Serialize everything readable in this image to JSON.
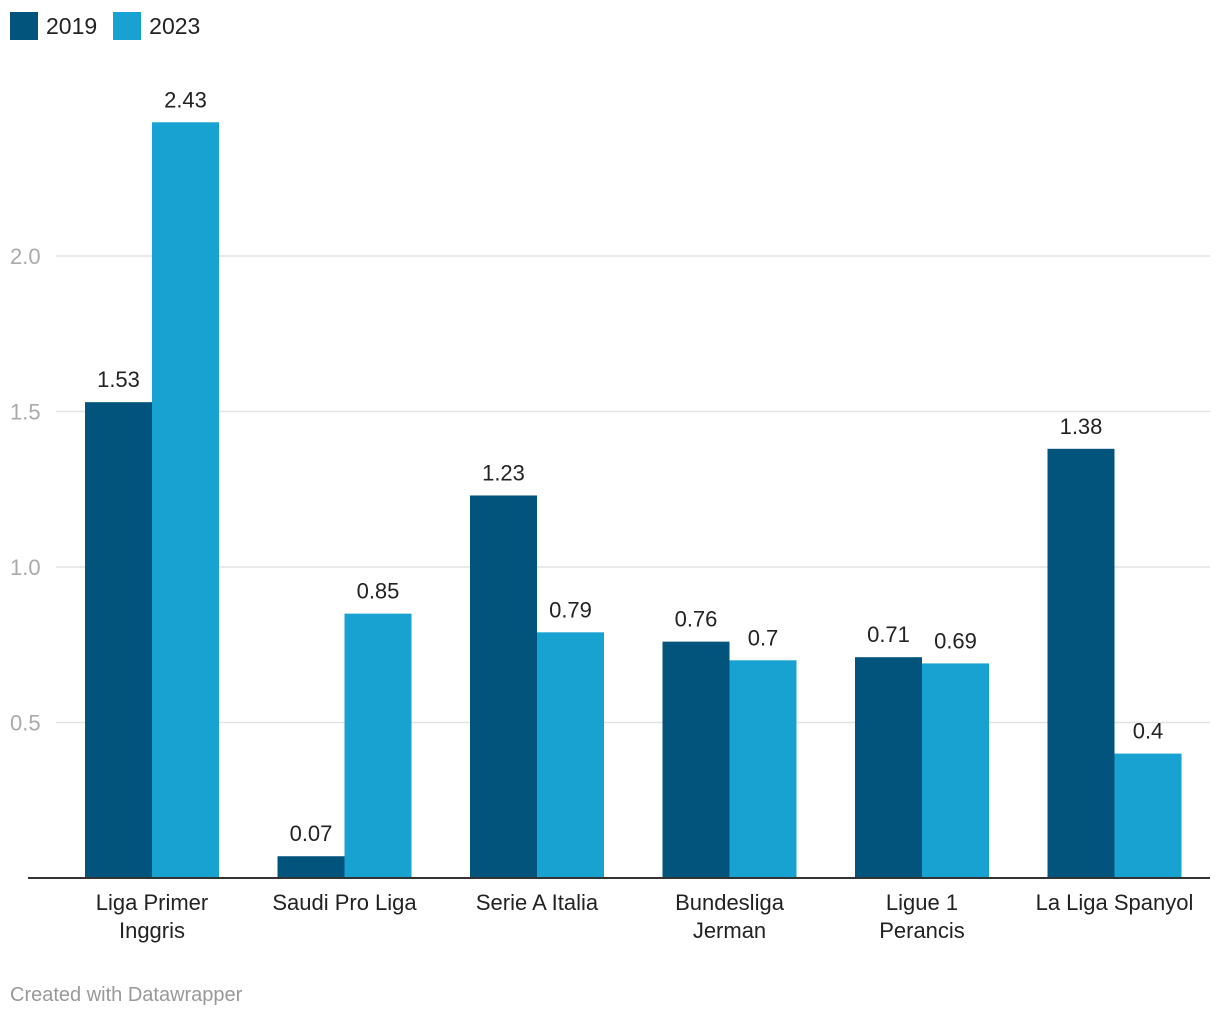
{
  "chart_data": {
    "type": "bar",
    "categories": [
      [
        "Liga Primer",
        "Inggris"
      ],
      [
        "Saudi Pro Liga"
      ],
      [
        "Serie A Italia"
      ],
      [
        "Bundesliga",
        "Jerman"
      ],
      [
        "Ligue 1",
        "Perancis"
      ],
      [
        "La Liga Spanyol"
      ]
    ],
    "series": [
      {
        "name": "2019",
        "color": "#02547d",
        "values": [
          1.53,
          0.07,
          1.23,
          0.76,
          0.71,
          1.38
        ],
        "labels": [
          "1.53",
          "0.07",
          "1.23",
          "0.76",
          "0.71",
          "1.38"
        ]
      },
      {
        "name": "2023",
        "color": "#18a2d1",
        "values": [
          2.43,
          0.85,
          0.79,
          0.7,
          0.69,
          0.4
        ],
        "labels": [
          "2.43",
          "0.85",
          "0.79",
          "0.7",
          "0.69",
          "0.4"
        ]
      }
    ],
    "yticks": [
      0.5,
      1.0,
      1.5,
      2.0
    ],
    "ytick_labels": [
      "0.5",
      "1.0",
      "1.5",
      "2.0"
    ],
    "ylim": [
      0,
      2.6
    ],
    "grid": true,
    "legend": "top-left",
    "title": "",
    "xlabel": "",
    "ylabel": ""
  },
  "footer": {
    "credit": "Created with Datawrapper"
  }
}
